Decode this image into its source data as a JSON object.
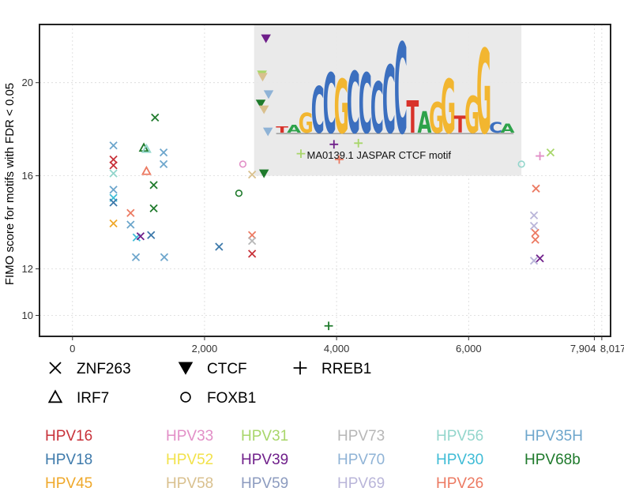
{
  "chart_data": {
    "type": "scatter",
    "ylabel": "FIMO score for motifs with FDR < 0.05",
    "xlabel": "",
    "xlim": [
      -500,
      8150
    ],
    "ylim": [
      9.1,
      22.5
    ],
    "x_ticks": [
      0,
      2000,
      4000,
      6000,
      7904,
      8017
    ],
    "x_tick_labels": [
      "0",
      "2,000",
      "4,000",
      "6,000",
      "7,904",
      "8,017"
    ],
    "y_ticks": [
      10,
      12,
      16,
      20
    ],
    "y_tick_labels": [
      "10",
      "12",
      "16",
      "20"
    ],
    "annotation": {
      "label": "MA0139.1 JASPAR CTCF motif",
      "x_range": [
        2750,
        6800
      ],
      "y_range": [
        16.0,
        22.5
      ],
      "logo_letters": [
        "T",
        "A",
        "G",
        "C",
        "C",
        "G",
        "C",
        "C",
        "C",
        "C",
        "C",
        "T",
        "A",
        "G",
        "G",
        "T",
        "G",
        "G",
        "C",
        "A"
      ]
    },
    "shape_legend": [
      {
        "motif": "ZNF263",
        "marker": "x"
      },
      {
        "motif": "CTCF",
        "marker": "triangle-down"
      },
      {
        "motif": "RREB1",
        "marker": "plus"
      },
      {
        "motif": "IRF7",
        "marker": "triangle-up"
      },
      {
        "motif": "FOXB1",
        "marker": "circle"
      }
    ],
    "color_legend": [
      {
        "name": "HPV16",
        "color": "#c8323a"
      },
      {
        "name": "HPV33",
        "color": "#e28fc7"
      },
      {
        "name": "HPV31",
        "color": "#a8d66a"
      },
      {
        "name": "HPV73",
        "color": "#b7b7b7"
      },
      {
        "name": "HPV56",
        "color": "#93d6cc"
      },
      {
        "name": "HPV35H",
        "color": "#6da6cc"
      },
      {
        "name": "HPV18",
        "color": "#3e7aab"
      },
      {
        "name": "HPV52",
        "color": "#f2e24b"
      },
      {
        "name": "HPV39",
        "color": "#6f1f8a"
      },
      {
        "name": "HPV70",
        "color": "#8fb3d6"
      },
      {
        "name": "HPV30",
        "color": "#3fbcd6"
      },
      {
        "name": "HPV68b",
        "color": "#1f7a2c"
      },
      {
        "name": "HPV45",
        "color": "#efa82a"
      },
      {
        "name": "HPV58",
        "color": "#d9c08e"
      },
      {
        "name": "HPV59",
        "color": "#8c9bbf"
      },
      {
        "name": "HPV69",
        "color": "#b9b5d9"
      },
      {
        "name": "HPV26",
        "color": "#ec7a62"
      }
    ],
    "points": [
      {
        "x": 620,
        "y": 17.3,
        "motif": "ZNF263",
        "type": "HPV35H"
      },
      {
        "x": 620,
        "y": 16.7,
        "motif": "ZNF263",
        "type": "HPV16"
      },
      {
        "x": 620,
        "y": 16.45,
        "motif": "ZNF263",
        "type": "HPV16"
      },
      {
        "x": 620,
        "y": 16.1,
        "motif": "ZNF263",
        "type": "HPV56"
      },
      {
        "x": 620,
        "y": 15.4,
        "motif": "ZNF263",
        "type": "HPV35H"
      },
      {
        "x": 620,
        "y": 15.05,
        "motif": "ZNF263",
        "type": "HPV30"
      },
      {
        "x": 620,
        "y": 14.85,
        "motif": "ZNF263",
        "type": "HPV18"
      },
      {
        "x": 620,
        "y": 13.95,
        "motif": "ZNF263",
        "type": "HPV45"
      },
      {
        "x": 880,
        "y": 14.4,
        "motif": "ZNF263",
        "type": "HPV26"
      },
      {
        "x": 880,
        "y": 13.9,
        "motif": "ZNF263",
        "type": "HPV35H"
      },
      {
        "x": 970,
        "y": 13.35,
        "motif": "ZNF263",
        "type": "HPV30"
      },
      {
        "x": 1030,
        "y": 13.4,
        "motif": "ZNF263",
        "type": "HPV39"
      },
      {
        "x": 960,
        "y": 12.5,
        "motif": "ZNF263",
        "type": "HPV35H"
      },
      {
        "x": 1080,
        "y": 17.2,
        "motif": "IRF7",
        "type": "HPV68b"
      },
      {
        "x": 1120,
        "y": 17.15,
        "motif": "IRF7",
        "type": "HPV56"
      },
      {
        "x": 1120,
        "y": 16.2,
        "motif": "IRF7",
        "type": "HPV26"
      },
      {
        "x": 1190,
        "y": 13.45,
        "motif": "ZNF263",
        "type": "HPV18"
      },
      {
        "x": 1250,
        "y": 18.5,
        "motif": "ZNF263",
        "type": "HPV68b"
      },
      {
        "x": 1230,
        "y": 15.6,
        "motif": "ZNF263",
        "type": "HPV68b"
      },
      {
        "x": 1230,
        "y": 14.6,
        "motif": "ZNF263",
        "type": "HPV68b"
      },
      {
        "x": 1380,
        "y": 17.0,
        "motif": "ZNF263",
        "type": "HPV35H"
      },
      {
        "x": 1380,
        "y": 16.5,
        "motif": "ZNF263",
        "type": "HPV35H"
      },
      {
        "x": 1390,
        "y": 12.5,
        "motif": "ZNF263",
        "type": "HPV35H"
      },
      {
        "x": 2220,
        "y": 12.95,
        "motif": "ZNF263",
        "type": "HPV18"
      },
      {
        "x": 2520,
        "y": 15.25,
        "motif": "FOXB1",
        "type": "HPV68b"
      },
      {
        "x": 2580,
        "y": 16.5,
        "motif": "FOXB1",
        "type": "HPV33"
      },
      {
        "x": 2720,
        "y": 16.05,
        "motif": "ZNF263",
        "type": "HPV58"
      },
      {
        "x": 2720,
        "y": 13.45,
        "motif": "ZNF263",
        "type": "HPV26"
      },
      {
        "x": 2720,
        "y": 13.2,
        "motif": "ZNF263",
        "type": "HPV73"
      },
      {
        "x": 2720,
        "y": 12.65,
        "motif": "ZNF263",
        "type": "HPV16"
      },
      {
        "x": 2930,
        "y": 21.9,
        "motif": "CTCF",
        "type": "HPV39"
      },
      {
        "x": 2870,
        "y": 20.35,
        "motif": "CTCF",
        "type": "HPV31"
      },
      {
        "x": 2880,
        "y": 20.25,
        "motif": "CTCF",
        "type": "HPV58"
      },
      {
        "x": 2970,
        "y": 19.5,
        "motif": "CTCF",
        "type": "HPV70"
      },
      {
        "x": 2850,
        "y": 19.1,
        "motif": "CTCF",
        "type": "HPV68b"
      },
      {
        "x": 2900,
        "y": 18.85,
        "motif": "CTCF",
        "type": "HPV58"
      },
      {
        "x": 2960,
        "y": 17.9,
        "motif": "CTCF",
        "type": "HPV70"
      },
      {
        "x": 2900,
        "y": 16.1,
        "motif": "CTCF",
        "type": "HPV68b"
      },
      {
        "x": 3460,
        "y": 16.95,
        "motif": "RREB1",
        "type": "HPV31"
      },
      {
        "x": 3960,
        "y": 17.35,
        "motif": "RREB1",
        "type": "HPV39"
      },
      {
        "x": 4040,
        "y": 16.7,
        "motif": "RREB1",
        "type": "HPV26"
      },
      {
        "x": 4330,
        "y": 17.4,
        "motif": "RREB1",
        "type": "HPV31"
      },
      {
        "x": 3880,
        "y": 9.55,
        "motif": "RREB1",
        "type": "HPV68b"
      },
      {
        "x": 6800,
        "y": 16.5,
        "motif": "FOXB1",
        "type": "HPV56"
      },
      {
        "x": 7080,
        "y": 16.85,
        "motif": "RREB1",
        "type": "HPV33"
      },
      {
        "x": 7240,
        "y": 17.0,
        "motif": "ZNF263",
        "type": "HPV31"
      },
      {
        "x": 7020,
        "y": 15.45,
        "motif": "ZNF263",
        "type": "HPV26"
      },
      {
        "x": 6990,
        "y": 14.3,
        "motif": "ZNF263",
        "type": "HPV69"
      },
      {
        "x": 6990,
        "y": 13.85,
        "motif": "ZNF263",
        "type": "HPV69"
      },
      {
        "x": 7010,
        "y": 13.55,
        "motif": "ZNF263",
        "type": "HPV26"
      },
      {
        "x": 7010,
        "y": 13.25,
        "motif": "ZNF263",
        "type": "HPV26"
      },
      {
        "x": 7080,
        "y": 12.45,
        "motif": "ZNF263",
        "type": "HPV39"
      },
      {
        "x": 6990,
        "y": 12.35,
        "motif": "ZNF263",
        "type": "HPV69"
      }
    ]
  }
}
